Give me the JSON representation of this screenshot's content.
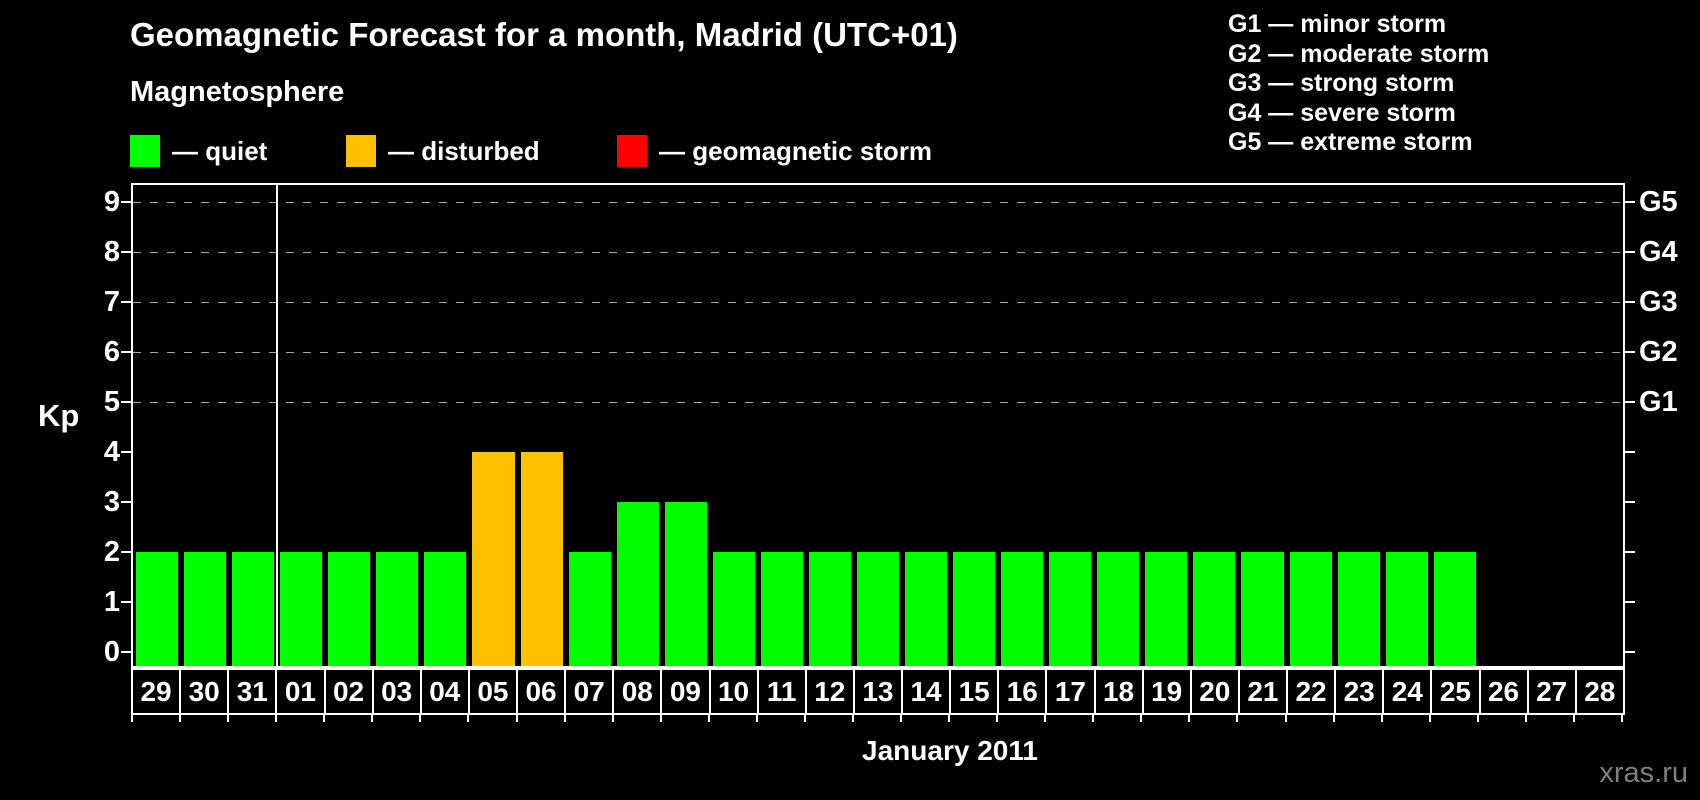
{
  "header": {
    "title": "Geomagnetic Forecast for a month, Madrid (UTC+01)",
    "subtitle": "Magnetosphere"
  },
  "legend": {
    "items": [
      {
        "name": "quiet",
        "label": "— quiet",
        "color": "#00FF00"
      },
      {
        "name": "disturbed",
        "label": "— disturbed",
        "color": "#FFC000"
      },
      {
        "name": "geomagnetic-storm",
        "label": "— geomagnetic storm",
        "color": "#FF0000"
      }
    ]
  },
  "storm_scale_legend": {
    "items": [
      "G1 — minor storm",
      "G2 — moderate storm",
      "G3 — strong storm",
      "G4 — severe storm",
      "G5 — extreme storm"
    ]
  },
  "chart_data": {
    "type": "bar",
    "title": "Geomagnetic Forecast for a month, Madrid (UTC+01)",
    "xlabel": "January 2011",
    "ylabel": "Kp",
    "categories": [
      "29",
      "30",
      "31",
      "01",
      "02",
      "03",
      "04",
      "05",
      "06",
      "07",
      "08",
      "09",
      "10",
      "11",
      "12",
      "13",
      "14",
      "15",
      "16",
      "17",
      "18",
      "19",
      "20",
      "21",
      "22",
      "23",
      "24",
      "25",
      "26",
      "27",
      "28"
    ],
    "values": [
      2,
      2,
      2,
      2,
      2,
      2,
      2,
      4,
      4,
      2,
      3,
      3,
      2,
      2,
      2,
      2,
      2,
      2,
      2,
      2,
      2,
      2,
      2,
      2,
      2,
      2,
      2,
      2,
      0,
      0,
      0
    ],
    "bar_color_rule": {
      "quiet_max_kp": 3,
      "quiet_color": "#00FF00",
      "disturbed_max_kp": 4,
      "disturbed_color": "#FFC000",
      "storm_color": "#FF0000"
    },
    "ylim": [
      0,
      9
    ],
    "yticks": [
      0,
      1,
      2,
      3,
      4,
      5,
      6,
      7,
      8,
      9
    ],
    "gridlines_at": [
      5,
      6,
      7,
      8,
      9
    ],
    "grid_style": "dashed",
    "legend_position": "top",
    "right_axis": [
      {
        "kp": 5,
        "label": "G1"
      },
      {
        "kp": 6,
        "label": "G2"
      },
      {
        "kp": 7,
        "label": "G3"
      },
      {
        "kp": 8,
        "label": "G4"
      },
      {
        "kp": 9,
        "label": "G5"
      }
    ],
    "month_divider_after_category": "31"
  },
  "watermark": "xras.ru",
  "colors": {
    "background": "#000000",
    "text": "#FFFFFF",
    "grid": "#A8A8A8",
    "axis": "#FFFFFF",
    "watermark": "#7F7F7F"
  }
}
